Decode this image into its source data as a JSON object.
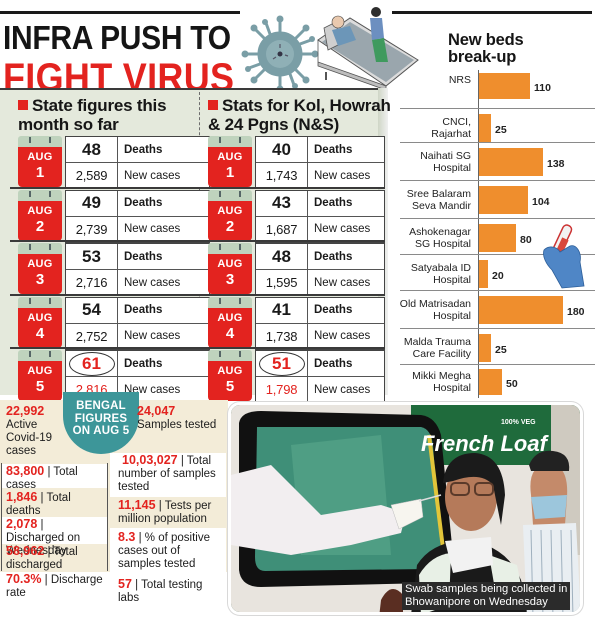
{
  "headline": {
    "line1": "INFRA PUSH TO",
    "line2": "FIGHT VIRUS"
  },
  "icons": {
    "virus": "virus-icon",
    "bed": "hospital-bed-illustration",
    "glove": "gloved-hand-test-tube-icon"
  },
  "colors": {
    "accent_red": "#e3231f",
    "bar_orange": "#ef8e2d",
    "badge_teal": "#3d9699",
    "panel_green": "#e4e9dc",
    "stats_cream": "#f3ecd8"
  },
  "state_section": {
    "title_line1": "State figures this",
    "title_line2": "month so far",
    "rows": [
      {
        "month": "AUG",
        "day": "1",
        "deaths": "48",
        "deaths_label": "Deaths",
        "cases": "2,589",
        "cases_label": "New cases"
      },
      {
        "month": "AUG",
        "day": "2",
        "deaths": "49",
        "deaths_label": "Deaths",
        "cases": "2,739",
        "cases_label": "New cases"
      },
      {
        "month": "AUG",
        "day": "3",
        "deaths": "53",
        "deaths_label": "Deaths",
        "cases": "2,716",
        "cases_label": "New cases"
      },
      {
        "month": "AUG",
        "day": "4",
        "deaths": "54",
        "deaths_label": "Deaths",
        "cases": "2,752",
        "cases_label": "New cases"
      },
      {
        "month": "AUG",
        "day": "5",
        "deaths": "61",
        "deaths_label": "Deaths",
        "cases": "2,816",
        "cases_label": "New cases"
      }
    ]
  },
  "kol_section": {
    "title_line1": "Stats for Kol, Howrah",
    "title_line2": "& 24 Pgns (N&S)",
    "rows": [
      {
        "month": "AUG",
        "day": "1",
        "deaths": "40",
        "deaths_label": "Deaths",
        "cases": "1,743",
        "cases_label": "New cases"
      },
      {
        "month": "AUG",
        "day": "2",
        "deaths": "43",
        "deaths_label": "Deaths",
        "cases": "1,687",
        "cases_label": "New cases"
      },
      {
        "month": "AUG",
        "day": "3",
        "deaths": "48",
        "deaths_label": "Deaths",
        "cases": "1,595",
        "cases_label": "New cases"
      },
      {
        "month": "AUG",
        "day": "4",
        "deaths": "41",
        "deaths_label": "Deaths",
        "cases": "1,738",
        "cases_label": "New cases"
      },
      {
        "month": "AUG",
        "day": "5",
        "deaths": "51",
        "deaths_label": "Deaths",
        "cases": "1,798",
        "cases_label": "New cases"
      }
    ]
  },
  "bengal": {
    "badge_line1": "BENGAL",
    "badge_line2": "FIGURES",
    "badge_line3": "ON AUG 5",
    "left": [
      {
        "value": "22,992",
        "label": "Active Covid-19 cases"
      },
      {
        "value": "83,800",
        "label": "| Total cases"
      },
      {
        "value": "1,846",
        "label": "| Total deaths"
      },
      {
        "value": "2,078",
        "label": "| Discharged on Wednesday"
      },
      {
        "value": "58,962",
        "label": "| Total discharged"
      },
      {
        "value": "70.3%",
        "label": "| Discharge rate"
      }
    ],
    "right": [
      {
        "value": "24,047",
        "label": "Samples tested"
      },
      {
        "value": "10,03,027",
        "label": "| Total number of samples tested"
      },
      {
        "value": "11,145",
        "label": "| Tests per million population"
      },
      {
        "value": "8.3",
        "label": "| % of positive cases out of samples tested"
      },
      {
        "value": "57",
        "label": "| Total testing labs"
      }
    ]
  },
  "photo": {
    "sign_text": "French Loaf",
    "sign_small": "100% VEG",
    "caption_line1": "Swab samples being collected in",
    "caption_line2": "Bhowanipore on Wednesday"
  },
  "chart_data": {
    "type": "bar",
    "orientation": "horizontal",
    "title": "New beds break-up",
    "title_line1": "New beds",
    "title_line2": "break-up",
    "categories": [
      "NRS",
      "CNCI, Rajarhat",
      "Naihati SG Hospital",
      "Sree Balaram Seva Mandir",
      "Ashokenagar SG Hospital",
      "Satyabala ID Hospital",
      "Old Matrisadan Hospital",
      "Malda Trauma Care Facility",
      "Mikki Megha Hospital"
    ],
    "labels": [
      [
        "NRS"
      ],
      [
        "CNCI,",
        "Rajarhat"
      ],
      [
        "Naihati SG",
        "Hospital"
      ],
      [
        "Sree Balaram",
        "Seva Mandir"
      ],
      [
        "Ashokenagar",
        "SG Hospital"
      ],
      [
        "Satyabala ID",
        "Hospital"
      ],
      [
        "Old Matrisadan",
        "Hospital"
      ],
      [
        "Malda Trauma",
        "Care Facility"
      ],
      [
        "Mikki Megha",
        "Hospital"
      ]
    ],
    "values": [
      110,
      25,
      138,
      104,
      80,
      20,
      180,
      25,
      50
    ],
    "value_labels": [
      "110",
      "25",
      "138",
      "104",
      "80",
      "20",
      "180",
      "25",
      "50"
    ],
    "xlabel": "",
    "ylabel": "",
    "xlim": [
      0,
      180
    ],
    "grid": false,
    "legend": "none",
    "bar_color": "#ef8e2d"
  }
}
